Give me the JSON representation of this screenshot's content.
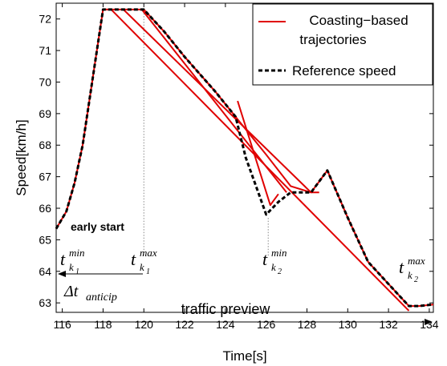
{
  "chart_data": {
    "type": "line",
    "xlabel": "Time[s]",
    "ylabel": "Speed[km/h]",
    "xlim": [
      115.7,
      134.2
    ],
    "ylim": [
      62.7,
      72.5
    ],
    "x_ticks": [
      "116",
      "118",
      "120",
      "122",
      "124",
      "126",
      "128",
      "130",
      "132",
      "134"
    ],
    "y_ticks": [
      "63",
      "64",
      "65",
      "66",
      "67",
      "68",
      "69",
      "70",
      "71",
      "72"
    ],
    "grid": false,
    "legend_position": "top-right",
    "legend": {
      "coasting_line1": "Coasting−based",
      "coasting_line2": "trajectories",
      "reference": "Reference speed"
    },
    "series": [
      {
        "name": "Coasting-based trajectories",
        "color": "#e00000",
        "style": "solid",
        "segments": [
          {
            "x": [
              115.7,
              116.2,
              116.6,
              117.0,
              118.0,
              120.0,
              121.0,
              122.0,
              123.5,
              125.0,
              126.0,
              127.2,
              128.2,
              129.0,
              130.0,
              131.0,
              132.0,
              133.0,
              133.5,
              134.2
            ],
            "y": [
              65.35,
              65.9,
              66.8,
              68.0,
              72.3,
              72.3,
              71.6,
              70.8,
              69.7,
              68.5,
              67.7,
              66.7,
              66.5,
              67.2,
              65.7,
              64.3,
              63.6,
              62.9,
              62.9,
              62.95
            ]
          },
          {
            "x": [
              118.0,
              118.4,
              133.0
            ],
            "y": [
              72.3,
              72.3,
              62.75
            ]
          },
          {
            "x": [
              119.0,
              128.2,
              128.6
            ],
            "y": [
              72.3,
              66.5,
              66.5
            ]
          },
          {
            "x": [
              119.9,
              127.0
            ],
            "y": [
              72.3,
              66.5
            ]
          },
          {
            "x": [
              124.6,
              126.2,
              126.6
            ],
            "y": [
              69.4,
              66.1,
              66.45
            ]
          }
        ]
      },
      {
        "name": "Reference speed",
        "color": "#000000",
        "style": "dashed",
        "x": [
          115.7,
          116.2,
          116.6,
          117.0,
          118.0,
          120.0,
          121.0,
          122.0,
          123.5,
          124.5,
          125.0,
          125.5,
          126.0,
          126.6,
          127.2,
          128.2,
          129.0,
          130.0,
          131.0,
          132.0,
          133.0,
          133.5,
          134.2
        ],
        "y": [
          65.35,
          65.9,
          66.8,
          68.0,
          72.3,
          72.3,
          71.6,
          70.8,
          69.7,
          68.9,
          67.6,
          66.7,
          65.8,
          66.2,
          66.5,
          66.5,
          67.2,
          65.7,
          64.3,
          63.6,
          62.9,
          62.9,
          62.95
        ]
      }
    ],
    "reference_lines": [
      {
        "x": 120.0,
        "y_from": 64.5,
        "y_to": 72.3
      },
      {
        "x": 126.1,
        "y_from": 64.5,
        "y_to": 65.7
      }
    ],
    "annotations": {
      "early_start": "early start",
      "t_k1_min_base": "t",
      "t_k1_min_sup": "min",
      "t_k1_min_sub": "k",
      "t_k1_min_subsub": "1",
      "t_k1_max_base": "t",
      "t_k1_max_sup": "max",
      "t_k1_max_sub": "k",
      "t_k1_max_subsub": "1",
      "t_k2_min_base": "t",
      "t_k2_min_sup": "min",
      "t_k2_min_sub": "k",
      "t_k2_min_subsub": "2",
      "t_k2_max_base": "t",
      "t_k2_max_sup": "max",
      "t_k2_max_sub": "k",
      "t_k2_max_subsub": "2",
      "delta_t_symbol": "Δt",
      "delta_t_sub": "anticip",
      "traffic_preview": "traffic preview"
    }
  }
}
